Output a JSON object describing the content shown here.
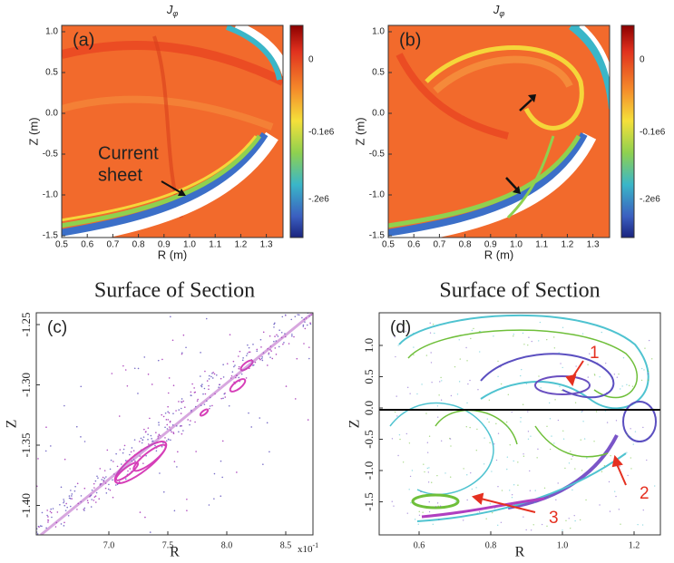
{
  "panels": [
    {
      "label": "(a)",
      "title_main": "J",
      "title_sub": "φ",
      "x_label": "R (m)",
      "y_label": "Z (m)",
      "x_ticks": [
        "0.5",
        "0.6",
        "0.7",
        "0.8",
        "0.9",
        "1.0",
        "1.1",
        "1.2",
        "1.3"
      ],
      "y_ticks": [
        "1.0",
        "0.5",
        "0.0",
        "-0.5",
        "-1.0",
        "-1.5"
      ],
      "colorbar_ticks": [
        "0",
        "-0.1e6",
        "-.2e6"
      ],
      "annotation": [
        "Current",
        "sheet"
      ]
    },
    {
      "label": "(b)",
      "title_main": "J",
      "title_sub": "φ",
      "x_label": "R (m)",
      "y_label": "Z (m)",
      "x_ticks": [
        "0.5",
        "0.6",
        "0.7",
        "0.8",
        "0.9",
        "1.0",
        "1.1",
        "1.2",
        "1.3"
      ],
      "y_ticks": [
        "1.0",
        "0.5",
        "0.0",
        "-0.5",
        "-1.0",
        "-1.5"
      ],
      "colorbar_ticks": [
        "0",
        "-0.1e6",
        "-.2e6"
      ]
    },
    {
      "label": "(c)",
      "title": "Surface of Section",
      "x_label": "R",
      "y_label": "Z",
      "x_ticks": [
        "7.0",
        "7.5",
        "8.0",
        "8.5"
      ],
      "y_ticks": [
        "-1.25",
        "-1.30",
        "-1.35",
        "-1.40"
      ],
      "x_scale_base": "x10",
      "x_scale_exp": "-1"
    },
    {
      "label": "(d)",
      "title": "Surface of Section",
      "x_label": "R",
      "y_label": "Z",
      "x_ticks": [
        "0.6",
        "0.8",
        "1.0",
        "1.2"
      ],
      "y_ticks": [
        "1.0",
        "0.5",
        "0.0",
        "-0.5",
        "-1.0",
        "-1.5"
      ],
      "markers": [
        "1",
        "2",
        "3"
      ]
    }
  ]
}
